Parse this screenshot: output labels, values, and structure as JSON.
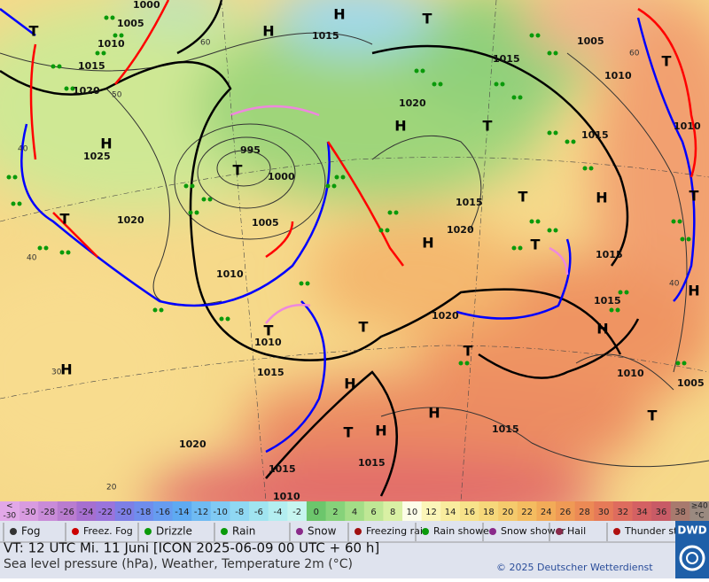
{
  "map": {
    "isobar_labels": [
      "1000",
      "1005",
      "1010",
      "1015",
      "1020",
      "1025",
      "995",
      "1000",
      "1005",
      "1010",
      "1020",
      "1015",
      "1015",
      "1020",
      "1005",
      "1010",
      "1015",
      "1010",
      "1015",
      "1020",
      "1015",
      "1015",
      "1020",
      "1010",
      "1015",
      "1010",
      "1005",
      "1015",
      "1020",
      "1015",
      "1015",
      "1010"
    ],
    "pressure_centers": [
      "H",
      "H",
      "T",
      "H",
      "T",
      "H",
      "T",
      "H",
      "T",
      "T",
      "T",
      "H",
      "T",
      "T",
      "H",
      "H",
      "T",
      "H",
      "T",
      "T",
      "H",
      "H",
      "T",
      "H",
      "T",
      "T"
    ],
    "temperature_contour_labels": [
      "60",
      "50",
      "40",
      "40",
      "30",
      "20",
      "60",
      "40"
    ]
  },
  "temperature_scale": {
    "below_label": [
      "<",
      "-30"
    ],
    "values": [
      -30,
      -28,
      -26,
      -24,
      -22,
      -20,
      -18,
      -16,
      -14,
      -12,
      -10,
      -8,
      -6,
      -4,
      -2,
      0,
      2,
      4,
      6,
      8,
      10,
      12,
      14,
      16,
      18,
      20,
      22,
      24,
      26,
      28,
      30,
      32,
      34,
      36,
      38
    ],
    "colors": [
      "#d89be0",
      "#c98bd8",
      "#b97ccf",
      "#a66fd0",
      "#9a74dc",
      "#7d7fe6",
      "#6f8ded",
      "#669cf0",
      "#5eaaf2",
      "#6fbbf3",
      "#80caf4",
      "#8fd8f3",
      "#a0e4f0",
      "#b3eef0",
      "#c6f5ef",
      "#6cc66c",
      "#86d27a",
      "#a3dd87",
      "#bfe795",
      "#d9f0a4",
      "#fdfde8",
      "#fbf5b8",
      "#f9ec9e",
      "#f7e28a",
      "#f6d77a",
      "#f5ca6c",
      "#f4bc60",
      "#f2ab58",
      "#ef9a55",
      "#ec8a55",
      "#e67a58",
      "#de6c5e",
      "#d46163",
      "#c85b66",
      "#a87a6e"
    ],
    "above_label": [
      "≥40",
      "°C"
    ]
  },
  "legend": [
    "Fog",
    "Freez. Fog",
    "Drizzle",
    "Rain",
    "Snow",
    "Freezing rain",
    "Rain shower",
    "Snow shower",
    "Hail",
    "Thunder storm"
  ],
  "footer": {
    "valid_time": "VT: 12 UTC Mi.   11 Juni [ICON 2025-06-09  00 UTC + 60 h]",
    "description": "Sea level pressure (hPa), Weather, Temperature 2m (°C)",
    "copyright": "© 2025 Deutscher Wetterdienst",
    "logo": "DWD"
  }
}
